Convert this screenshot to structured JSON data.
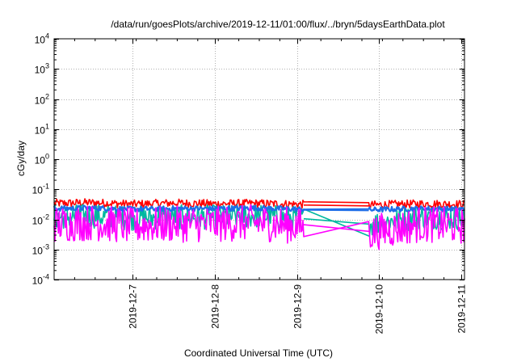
{
  "chart_data": {
    "type": "line",
    "title": "/data/run/goesPlots/archive/2019-12-11/01:00/flux/../bryn/5daysEarthData.plot",
    "xlabel": "Coordinated Universal Time (UTC)",
    "ylabel": "cGy/day",
    "yscale": "log",
    "ylim_exp": [
      -4,
      4
    ],
    "y_ticks": [
      {
        "base": "10",
        "exp": "4"
      },
      {
        "base": "10",
        "exp": "3"
      },
      {
        "base": "10",
        "exp": "2"
      },
      {
        "base": "10",
        "exp": "1"
      },
      {
        "base": "10",
        "exp": "0"
      },
      {
        "base": "10",
        "exp": "-1"
      },
      {
        "base": "10",
        "exp": "-2"
      },
      {
        "base": "10",
        "exp": "-3"
      },
      {
        "base": "10",
        "exp": "-4"
      }
    ],
    "xlim": [
      "2019-12-06T01:00",
      "2019-12-11T01:00"
    ],
    "x_ticks": [
      "2019-12-7",
      "2019-12-8",
      "2019-12-9",
      "2019-12-10",
      "2019-12-11"
    ],
    "grid": true,
    "gap": [
      "2019-12-09T02:00",
      "2019-12-09T21:00"
    ],
    "series": [
      {
        "color": "#ff0000",
        "base": 0.028,
        "spread": 0.55,
        "x": [
          "2019-12-06T01:00",
          "2019-12-06T12:00",
          "2019-12-07T00:00",
          "2019-12-07T12:00",
          "2019-12-08T00:00",
          "2019-12-08T12:00",
          "2019-12-09T00:00",
          "2019-12-09T21:00",
          "2019-12-10T12:00",
          "2019-12-11T01:00"
        ],
        "values": [
          0.032,
          0.034,
          0.03,
          0.033,
          0.031,
          0.032,
          0.03,
          0.028,
          0.031,
          0.03
        ]
      },
      {
        "color": "#00b8a0",
        "base": 0.012,
        "spread": 0.9,
        "x": [
          "2019-12-06T01:00",
          "2019-12-06T12:00",
          "2019-12-07T00:00",
          "2019-12-07T12:00",
          "2019-12-08T00:00",
          "2019-12-08T12:00",
          "2019-12-09T00:00",
          "2019-12-09T21:00",
          "2019-12-10T12:00",
          "2019-12-11T01:00"
        ],
        "values": [
          0.012,
          0.013,
          0.011,
          0.012,
          0.012,
          0.013,
          0.011,
          0.007,
          0.012,
          0.011
        ]
      },
      {
        "color": "#1e6ee8",
        "base": 0.022,
        "spread": 0.35,
        "x": [
          "2019-12-06T01:00",
          "2019-12-06T12:00",
          "2019-12-07T00:00",
          "2019-12-07T12:00",
          "2019-12-08T00:00",
          "2019-12-08T12:00",
          "2019-12-09T00:00",
          "2019-12-09T21:00",
          "2019-12-10T12:00",
          "2019-12-11T01:00"
        ],
        "values": [
          0.022,
          0.023,
          0.021,
          0.022,
          0.022,
          0.023,
          0.021,
          0.02,
          0.022,
          0.021
        ]
      },
      {
        "color": "#ff00ff",
        "base": 0.008,
        "spread": 1.1,
        "x": [
          "2019-12-06T01:00",
          "2019-12-06T12:00",
          "2019-12-07T00:00",
          "2019-12-07T12:00",
          "2019-12-08T00:00",
          "2019-12-08T12:00",
          "2019-12-09T00:00",
          "2019-12-09T21:00",
          "2019-12-10T12:00",
          "2019-12-11T01:00"
        ],
        "values": [
          0.008,
          0.009,
          0.007,
          0.008,
          0.008,
          0.009,
          0.007,
          0.004,
          0.008,
          0.007
        ]
      }
    ]
  }
}
